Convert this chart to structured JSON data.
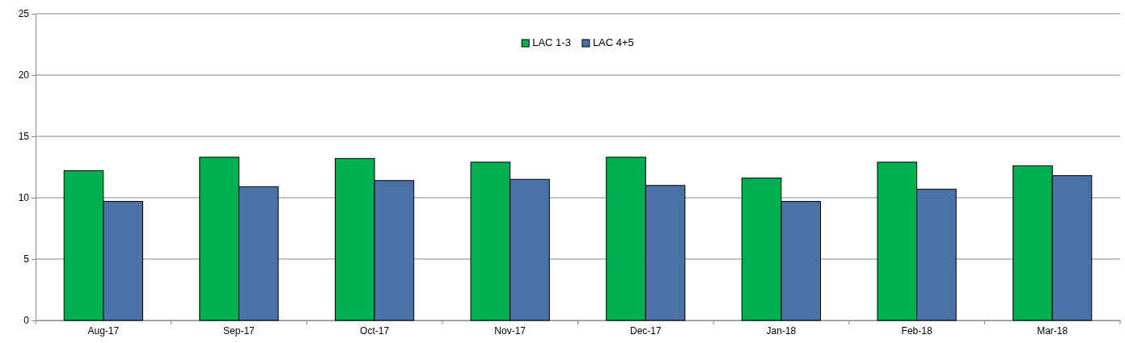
{
  "chart_data": {
    "type": "bar",
    "categories": [
      "Aug-17",
      "Sep-17",
      "Oct-17",
      "Nov-17",
      "Dec-17",
      "Jan-18",
      "Feb-18",
      "Mar-18"
    ],
    "series": [
      {
        "name": "LAC 1-3",
        "color": "#00b050",
        "values": [
          12.2,
          13.3,
          13.2,
          12.9,
          13.3,
          11.6,
          12.9,
          12.6
        ]
      },
      {
        "name": "LAC 4+5",
        "color": "#4a72a6",
        "values": [
          9.7,
          10.9,
          11.4,
          11.5,
          11.0,
          9.7,
          10.7,
          11.8
        ]
      }
    ],
    "ylim": [
      0,
      25
    ],
    "yticks": [
      0,
      5,
      10,
      15,
      20,
      25
    ],
    "grid": "y",
    "legend": "top"
  }
}
